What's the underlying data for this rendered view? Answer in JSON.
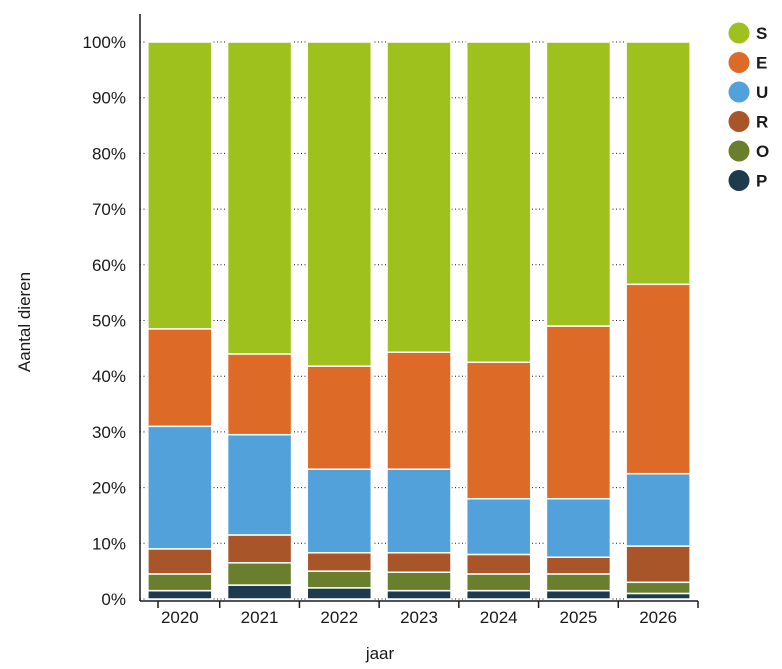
{
  "chart_data": {
    "type": "bar",
    "stacked": true,
    "normalized": true,
    "xlabel": "jaar",
    "ylabel": "Aantal dieren",
    "ylim": [
      0,
      100
    ],
    "y_ticks": [
      "0%",
      "10%",
      "20%",
      "30%",
      "40%",
      "50%",
      "60%",
      "70%",
      "80%",
      "90%",
      "100%"
    ],
    "grid": true,
    "legend_position": "top-right",
    "categories": [
      "2020",
      "2021",
      "2022",
      "2023",
      "2024",
      "2025",
      "2026"
    ],
    "series": [
      {
        "name": "P",
        "color": "#1e3a4f",
        "values": [
          1.5,
          2.5,
          2.0,
          1.5,
          1.5,
          1.5,
          1.0
        ]
      },
      {
        "name": "O",
        "color": "#6a7f2e",
        "values": [
          3.0,
          4.0,
          3.0,
          3.3,
          3.0,
          3.0,
          2.0
        ]
      },
      {
        "name": "R",
        "color": "#a9552a",
        "values": [
          4.5,
          5.0,
          3.3,
          3.5,
          3.5,
          3.0,
          6.5
        ]
      },
      {
        "name": "U",
        "color": "#52a1da",
        "values": [
          22.0,
          18.0,
          15.0,
          15.0,
          10.0,
          10.5,
          13.0
        ]
      },
      {
        "name": "E",
        "color": "#dd6b27",
        "values": [
          17.5,
          14.5,
          18.5,
          21.0,
          24.5,
          31.0,
          34.0
        ]
      },
      {
        "name": "S",
        "color": "#9fc11e",
        "values": [
          51.5,
          56.0,
          58.2,
          55.7,
          57.5,
          51.0,
          43.5
        ]
      }
    ]
  }
}
